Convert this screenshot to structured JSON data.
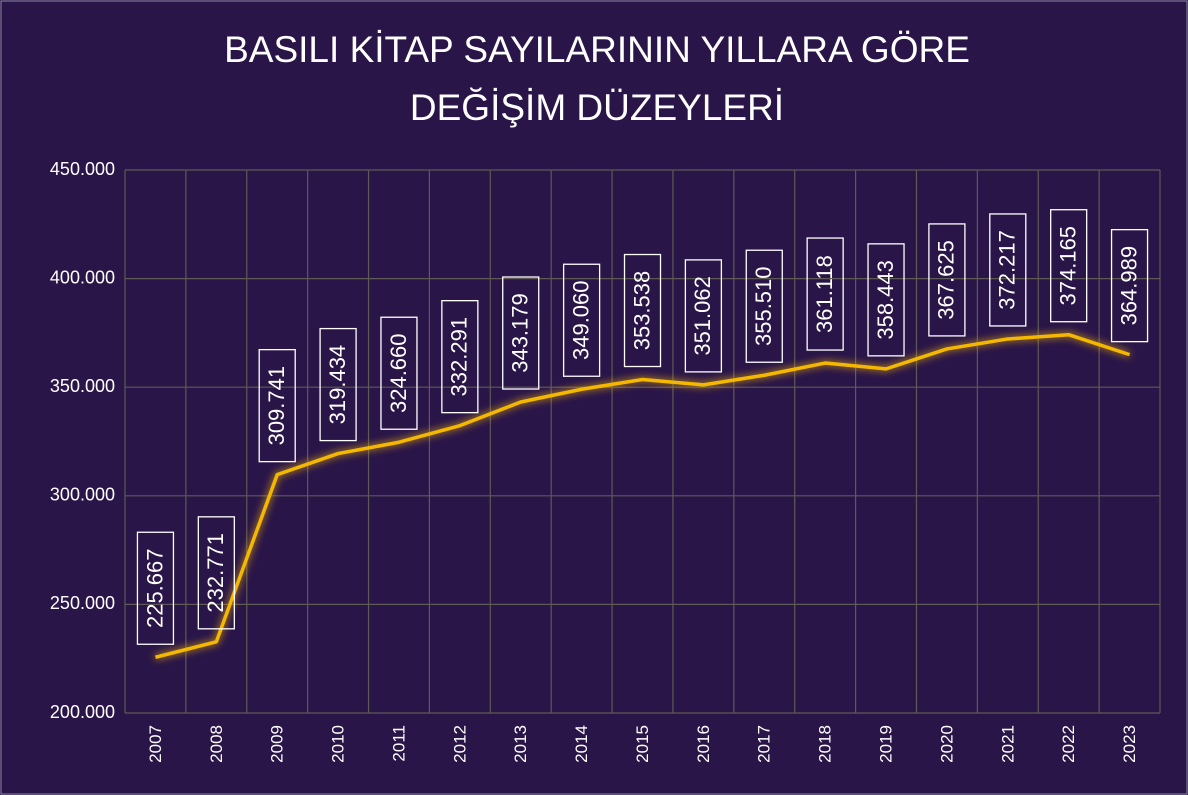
{
  "chart_data": {
    "type": "line",
    "title": [
      "BASILI KİTAP SAYILARININ YILLARA GÖRE",
      "DEĞİŞİM DÜZEYLERİ"
    ],
    "categories": [
      "2007",
      "2008",
      "2009",
      "2010",
      "2011",
      "2012",
      "2013",
      "2014",
      "2015",
      "2016",
      "2017",
      "2018",
      "2019",
      "2020",
      "2021",
      "2022",
      "2023"
    ],
    "values": [
      225667,
      232771,
      309741,
      319434,
      324660,
      332291,
      343179,
      349060,
      353538,
      351062,
      355510,
      361118,
      358443,
      367625,
      372217,
      374165,
      364989
    ],
    "value_labels": [
      "225.667",
      "232.771",
      "309.741",
      "319.434",
      "324.660",
      "332.291",
      "343.179",
      "349.060",
      "353.538",
      "351.062",
      "355.510",
      "361.118",
      "358.443",
      "367.625",
      "372.217",
      "374.165",
      "364.989"
    ],
    "color": "#f5b800",
    "ylim": [
      200000,
      450000
    ],
    "yticks": [
      {
        "value": 200000,
        "label": "200.000"
      },
      {
        "value": 250000,
        "label": "250.000"
      },
      {
        "value": 300000,
        "label": "300.000"
      },
      {
        "value": 350000,
        "label": "350.000"
      },
      {
        "value": 400000,
        "label": "400.000"
      },
      {
        "value": 450000,
        "label": "450.000"
      }
    ],
    "grid": true
  }
}
